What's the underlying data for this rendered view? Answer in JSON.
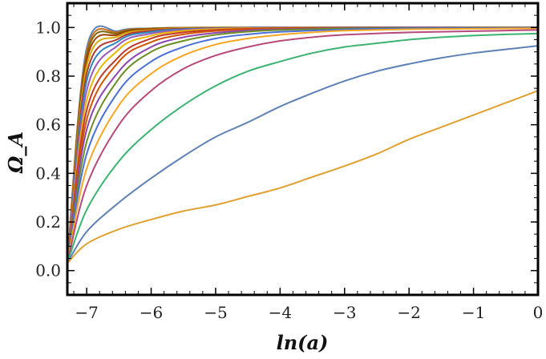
{
  "chart_data": {
    "type": "line",
    "title": "",
    "xlabel": "ln(a)",
    "ylabel": "Ω_A",
    "xlim": [
      -7.3,
      0
    ],
    "ylim": [
      -0.1,
      1.1
    ],
    "x_ticks": [
      -7,
      -6,
      -5,
      -4,
      -3,
      -2,
      -1,
      0
    ],
    "x_tick_labels": [
      "−7",
      "−6",
      "−5",
      "−4",
      "−3",
      "−2",
      "−1",
      "0"
    ],
    "y_ticks": [
      0.0,
      0.2,
      0.4,
      0.6,
      0.8,
      1.0
    ],
    "y_tick_labels": [
      "0.0",
      "0.2",
      "0.4",
      "0.6",
      "0.8",
      "1.0"
    ],
    "grid": false,
    "legend": "none",
    "series": [
      {
        "color": "#E0A030",
        "x": [
          -7.3,
          -7.0,
          -6.5,
          -6.0,
          -5.5,
          -5.0,
          -4.5,
          -4.0,
          -3.5,
          -3.0,
          -2.5,
          -2.0,
          -1.5,
          -1.0,
          -0.5,
          0.0
        ],
        "y": [
          0.03,
          0.11,
          0.17,
          0.21,
          0.245,
          0.27,
          0.305,
          0.34,
          0.385,
          0.43,
          0.48,
          0.54,
          0.59,
          0.64,
          0.69,
          0.74
        ]
      },
      {
        "color": "#5E81B5",
        "x": [
          -7.3,
          -7.0,
          -6.5,
          -6.0,
          -5.5,
          -5.0,
          -4.5,
          -4.0,
          -3.5,
          -3.0,
          -2.5,
          -2.0,
          -1.5,
          -1.0,
          -0.5,
          0.0
        ],
        "y": [
          0.03,
          0.16,
          0.28,
          0.38,
          0.47,
          0.55,
          0.61,
          0.675,
          0.73,
          0.78,
          0.82,
          0.85,
          0.875,
          0.895,
          0.91,
          0.925
        ]
      },
      {
        "color": "#3CB371",
        "x": [
          -7.3,
          -7.0,
          -6.5,
          -6.0,
          -5.5,
          -5.0,
          -4.5,
          -4.0,
          -3.5,
          -3.0,
          -2.5,
          -2.0,
          -1.5,
          -1.0,
          -0.5,
          0.0
        ],
        "y": [
          0.03,
          0.25,
          0.45,
          0.58,
          0.68,
          0.76,
          0.82,
          0.86,
          0.895,
          0.92,
          0.935,
          0.95,
          0.96,
          0.967,
          0.972,
          0.975
        ]
      },
      {
        "color": "#B8497B",
        "x": [
          -7.3,
          -7.0,
          -6.5,
          -6.0,
          -5.5,
          -5.0,
          -4.5,
          -4.0,
          -3.5,
          -3.0,
          -2.0,
          -1.0,
          0.0
        ],
        "y": [
          0.03,
          0.35,
          0.6,
          0.74,
          0.83,
          0.885,
          0.92,
          0.945,
          0.96,
          0.97,
          0.98,
          0.985,
          0.99
        ]
      },
      {
        "color": "#F5A623",
        "x": [
          -7.3,
          -7.0,
          -6.5,
          -6.0,
          -5.5,
          -5.0,
          -4.5,
          -4.0,
          -3.5,
          -3.0,
          -2.0,
          -1.0,
          0.0
        ],
        "y": [
          0.03,
          0.42,
          0.68,
          0.81,
          0.885,
          0.93,
          0.955,
          0.97,
          0.98,
          0.987,
          0.993,
          0.995,
          0.997
        ]
      },
      {
        "color": "#4A6FD9",
        "x": [
          -7.3,
          -7.0,
          -6.5,
          -6.0,
          -5.5,
          -5.0,
          -4.5,
          -4.0,
          -3.0,
          -2.0,
          0.0
        ],
        "y": [
          0.03,
          0.48,
          0.74,
          0.86,
          0.92,
          0.955,
          0.972,
          0.982,
          0.992,
          0.996,
          0.999
        ]
      },
      {
        "color": "#6B8E23",
        "x": [
          -7.3,
          -7.0,
          -6.5,
          -6.0,
          -5.5,
          -5.0,
          -4.5,
          -4.0,
          -3.0,
          -2.0,
          0.0
        ],
        "y": [
          0.03,
          0.53,
          0.79,
          0.9,
          0.945,
          0.97,
          0.983,
          0.99,
          0.996,
          0.998,
          1.0
        ]
      },
      {
        "color": "#8E44AD",
        "x": [
          -7.3,
          -7.0,
          -6.5,
          -6.0,
          -5.5,
          -5.0,
          -4.5,
          -4.0,
          -3.0,
          -2.0,
          0.0
        ],
        "y": [
          0.03,
          0.58,
          0.82,
          0.92,
          0.96,
          0.978,
          0.988,
          0.993,
          0.997,
          0.999,
          1.0
        ]
      },
      {
        "color": "#D35400",
        "x": [
          -7.3,
          -7.0,
          -6.5,
          -6.0,
          -5.5,
          -5.0,
          -4.5,
          -4.0,
          -3.0,
          -2.0,
          0.0
        ],
        "y": [
          0.03,
          0.62,
          0.86,
          0.94,
          0.972,
          0.986,
          0.993,
          0.996,
          0.998,
          0.999,
          1.0
        ]
      },
      {
        "color": "#C0392B",
        "x": [
          -7.3,
          -7.0,
          -6.5,
          -6.0,
          -5.5,
          -5.0,
          -4.5,
          -4.0,
          -3.0,
          0.0
        ],
        "y": [
          0.03,
          0.66,
          0.88,
          0.955,
          0.98,
          0.99,
          0.995,
          0.997,
          0.999,
          1.0
        ]
      },
      {
        "color": "#E6B800",
        "x": [
          -7.3,
          -7.0,
          -6.5,
          -6.0,
          -5.5,
          -5.0,
          -4.5,
          -4.0,
          -3.0,
          0.0
        ],
        "y": [
          0.03,
          0.7,
          0.91,
          0.966,
          0.986,
          0.994,
          0.997,
          0.998,
          0.999,
          1.0
        ]
      },
      {
        "color": "#9B59B6",
        "x": [
          -7.3,
          -7.0,
          -6.5,
          -6.0,
          -5.5,
          -5.0,
          -4.5,
          -4.0,
          -3.0,
          0.0
        ],
        "y": [
          0.03,
          0.74,
          0.93,
          0.975,
          0.99,
          0.996,
          0.998,
          0.999,
          1.0,
          1.0
        ]
      },
      {
        "color": "#2E86C1",
        "x": [
          -7.3,
          -7.0,
          -6.5,
          -6.0,
          -5.5,
          -5.0,
          -4.5,
          -4.0,
          0.0
        ],
        "y": [
          0.03,
          0.78,
          0.945,
          0.982,
          0.993,
          0.997,
          0.999,
          1.0,
          1.0
        ]
      },
      {
        "color": "#B03A2E",
        "x": [
          -7.3,
          -7.0,
          -6.5,
          -6.0,
          -5.5,
          -5.0,
          -4.5,
          -4.0,
          0.0
        ],
        "y": [
          0.03,
          0.81,
          0.955,
          0.987,
          0.995,
          0.998,
          0.999,
          1.0,
          1.0
        ]
      },
      {
        "color": "#D4AC0D",
        "x": [
          -7.3,
          -7.0,
          -6.5,
          -6.0,
          -5.5,
          -5.0,
          -4.5,
          -4.0,
          0.0
        ],
        "y": [
          0.03,
          0.84,
          0.965,
          0.99,
          0.997,
          0.999,
          1.0,
          1.0,
          1.0
        ]
      },
      {
        "color": "#A04000",
        "x": [
          -7.3,
          -7.0,
          -6.5,
          -6.0,
          -5.5,
          -5.0,
          -4.5,
          -4.0,
          0.0
        ],
        "y": [
          0.03,
          0.865,
          0.972,
          0.993,
          0.998,
          0.999,
          1.0,
          1.0,
          1.0
        ]
      },
      {
        "color": "#7D6608",
        "x": [
          -7.3,
          -7.0,
          -6.5,
          -6.0,
          -5.5,
          -5.0,
          -4.5,
          -4.0,
          0.0
        ],
        "y": [
          0.03,
          0.885,
          0.978,
          0.995,
          0.999,
          1.0,
          1.0,
          1.0,
          1.0
        ]
      },
      {
        "color": "#CA6F1E",
        "x": [
          -7.3,
          -7.0,
          -6.5,
          -6.0,
          -5.5,
          -5.0,
          -4.5,
          -4.0,
          0.0
        ],
        "y": [
          0.03,
          0.9,
          0.982,
          0.996,
          0.999,
          1.0,
          1.0,
          1.0,
          1.0
        ]
      },
      {
        "color": "#5E81B5",
        "x": [
          -7.3,
          -7.0,
          -6.5,
          -6.0,
          -5.5,
          -5.0,
          -4.5,
          -4.0,
          0.0
        ],
        "y": [
          0.03,
          0.915,
          0.986,
          0.997,
          0.999,
          1.0,
          1.0,
          1.0,
          1.0
        ]
      }
    ]
  }
}
